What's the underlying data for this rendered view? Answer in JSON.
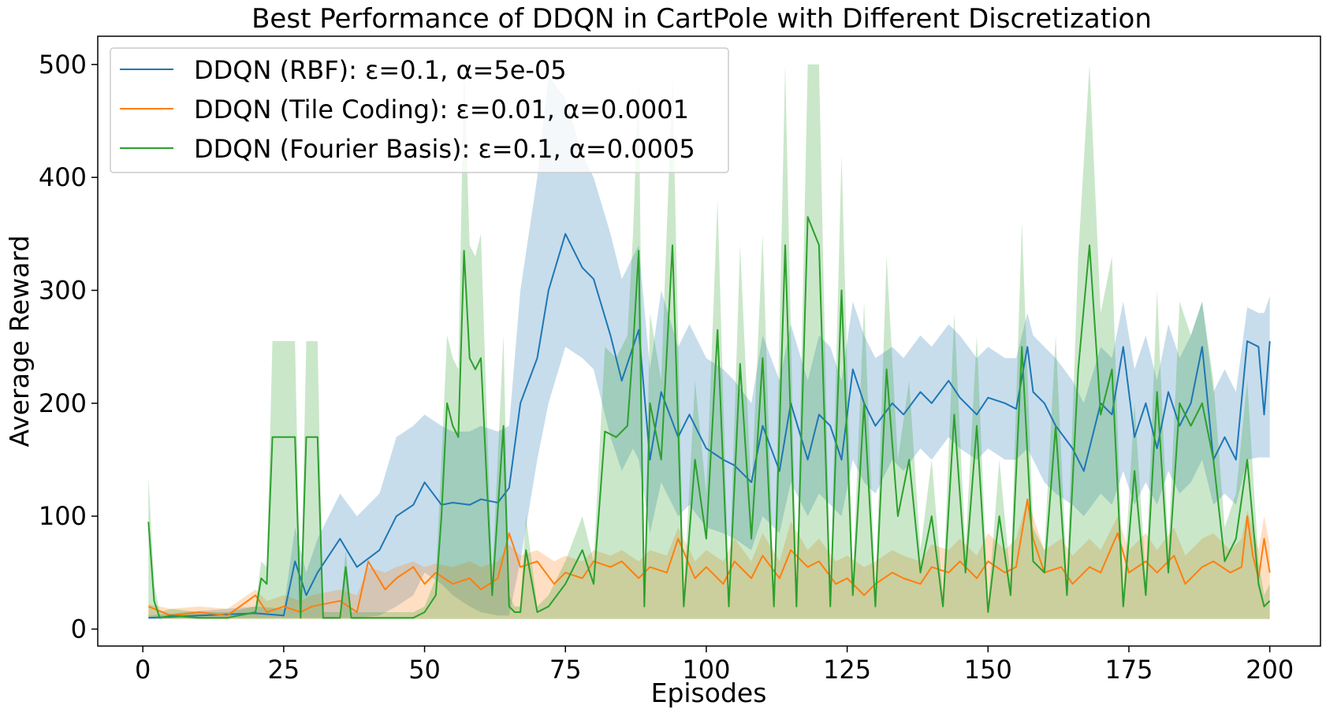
{
  "chart_data": {
    "type": "line",
    "title": "Best Performance of DDQN in CartPole with Different Discretization",
    "xlabel": "Episodes",
    "ylabel": "Average Reward",
    "xlim": [
      -8,
      209
    ],
    "ylim": [
      -15,
      525
    ],
    "xticks": [
      0,
      25,
      50,
      75,
      100,
      125,
      150,
      175,
      200
    ],
    "yticks": [
      0,
      100,
      200,
      300,
      400,
      500
    ],
    "grid": false,
    "legend_position": "top-left",
    "series": [
      {
        "name": "DDQN (RBF): ε=0.1, α=5e-05",
        "color": "#1f77b4",
        "band_color": "#1f77b4",
        "x": [
          1,
          10,
          20,
          25,
          27,
          29,
          31,
          35,
          38,
          42,
          45,
          48,
          50,
          53,
          55,
          58,
          60,
          63,
          65,
          67,
          70,
          72,
          75,
          78,
          80,
          83,
          85,
          87,
          88,
          90,
          92,
          95,
          97,
          100,
          103,
          105,
          108,
          110,
          113,
          115,
          118,
          120,
          122,
          124,
          126,
          128,
          130,
          133,
          135,
          138,
          140,
          143,
          145,
          148,
          150,
          153,
          155,
          157,
          158,
          160,
          162,
          165,
          167,
          170,
          172,
          174,
          176,
          178,
          180,
          182,
          184,
          186,
          188,
          190,
          192,
          194,
          196,
          198,
          199,
          200
        ],
        "mean": [
          10,
          12,
          14,
          12,
          60,
          30,
          50,
          80,
          55,
          70,
          100,
          110,
          130,
          110,
          112,
          110,
          115,
          112,
          125,
          200,
          240,
          300,
          350,
          320,
          310,
          260,
          220,
          250,
          265,
          150,
          210,
          170,
          190,
          160,
          150,
          145,
          130,
          180,
          140,
          200,
          150,
          190,
          180,
          150,
          230,
          200,
          180,
          200,
          190,
          210,
          200,
          220,
          205,
          190,
          205,
          200,
          195,
          250,
          210,
          200,
          180,
          160,
          140,
          200,
          190,
          250,
          170,
          200,
          160,
          210,
          180,
          200,
          250,
          150,
          170,
          150,
          255,
          250,
          190,
          255
        ],
        "lower": [
          9,
          10,
          10,
          10,
          10,
          10,
          10,
          10,
          10,
          12,
          20,
          30,
          50,
          40,
          30,
          20,
          15,
          12,
          12,
          60,
          150,
          200,
          250,
          240,
          230,
          170,
          140,
          160,
          150,
          85,
          130,
          100,
          110,
          90,
          85,
          80,
          70,
          100,
          85,
          130,
          100,
          120,
          110,
          100,
          150,
          130,
          120,
          150,
          140,
          160,
          150,
          170,
          160,
          150,
          160,
          150,
          150,
          160,
          150,
          130,
          120,
          110,
          100,
          120,
          110,
          140,
          110,
          130,
          110,
          140,
          120,
          130,
          150,
          110,
          120,
          110,
          150,
          152,
          152,
          152
        ],
        "upper": [
          12,
          16,
          20,
          18,
          90,
          50,
          80,
          120,
          100,
          120,
          170,
          180,
          190,
          180,
          175,
          175,
          180,
          175,
          180,
          300,
          400,
          490,
          470,
          420,
          400,
          350,
          310,
          330,
          340,
          230,
          300,
          250,
          270,
          240,
          230,
          220,
          200,
          260,
          220,
          270,
          220,
          260,
          250,
          220,
          290,
          260,
          240,
          250,
          240,
          260,
          250,
          270,
          260,
          240,
          250,
          240,
          240,
          280,
          260,
          250,
          240,
          220,
          200,
          250,
          240,
          290,
          230,
          260,
          220,
          270,
          240,
          260,
          290,
          210,
          230,
          210,
          285,
          280,
          280,
          295
        ]
      },
      {
        "name": "DDQN (Tile Coding): ε=0.01, α=0.0001",
        "color": "#ff7f0e",
        "band_color": "#ff7f0e",
        "x": [
          1,
          5,
          10,
          15,
          20,
          22,
          25,
          28,
          30,
          35,
          38,
          40,
          43,
          45,
          48,
          50,
          52,
          55,
          58,
          60,
          63,
          65,
          67,
          70,
          73,
          75,
          78,
          80,
          83,
          85,
          88,
          90,
          93,
          95,
          98,
          100,
          103,
          105,
          108,
          110,
          113,
          115,
          118,
          120,
          123,
          125,
          128,
          130,
          133,
          135,
          138,
          140,
          143,
          145,
          148,
          150,
          153,
          155,
          157,
          158,
          160,
          163,
          165,
          168,
          170,
          173,
          175,
          178,
          180,
          183,
          185,
          188,
          190,
          193,
          195,
          196,
          197,
          198,
          199,
          200
        ],
        "mean": [
          20,
          12,
          15,
          12,
          30,
          15,
          20,
          15,
          20,
          25,
          15,
          60,
          35,
          45,
          55,
          40,
          50,
          40,
          45,
          35,
          45,
          85,
          55,
          60,
          40,
          50,
          45,
          60,
          55,
          60,
          45,
          55,
          50,
          80,
          45,
          55,
          40,
          60,
          45,
          65,
          45,
          70,
          55,
          60,
          40,
          45,
          30,
          40,
          50,
          45,
          40,
          55,
          50,
          60,
          45,
          60,
          50,
          55,
          115,
          80,
          50,
          55,
          40,
          55,
          50,
          85,
          50,
          60,
          50,
          65,
          40,
          55,
          60,
          50,
          55,
          100,
          65,
          45,
          80,
          50
        ],
        "lower": [
          10,
          9,
          9,
          9,
          9,
          9,
          9,
          9,
          9,
          9,
          9,
          9,
          9,
          9,
          9,
          9,
          9,
          9,
          9,
          9,
          9,
          9,
          9,
          9,
          9,
          9,
          9,
          9,
          9,
          9,
          9,
          9,
          9,
          9,
          9,
          9,
          9,
          9,
          9,
          9,
          9,
          9,
          9,
          9,
          9,
          9,
          9,
          9,
          9,
          9,
          9,
          9,
          9,
          9,
          9,
          9,
          9,
          9,
          9,
          9,
          9,
          9,
          9,
          9,
          9,
          9,
          9,
          9,
          9,
          9,
          9,
          9,
          9,
          9,
          9,
          9,
          9,
          9,
          9,
          9
        ],
        "upper": [
          22,
          18,
          20,
          18,
          35,
          25,
          30,
          25,
          30,
          35,
          30,
          55,
          50,
          55,
          60,
          55,
          58,
          55,
          60,
          55,
          60,
          75,
          65,
          70,
          60,
          65,
          60,
          70,
          65,
          70,
          60,
          70,
          65,
          90,
          60,
          70,
          60,
          80,
          60,
          85,
          60,
          95,
          70,
          80,
          60,
          65,
          55,
          60,
          70,
          65,
          60,
          75,
          70,
          80,
          65,
          85,
          70,
          80,
          115,
          100,
          70,
          80,
          65,
          80,
          70,
          100,
          70,
          85,
          70,
          90,
          65,
          80,
          85,
          70,
          80,
          105,
          90,
          70,
          100,
          75
        ]
      },
      {
        "name": "DDQN (Fourier Basis): ε=0.1, α=0.0005",
        "color": "#2ca02c",
        "band_color": "#2ca02c",
        "x": [
          1,
          2,
          3,
          5,
          10,
          15,
          20,
          21,
          22,
          23,
          24,
          27,
          28,
          29,
          31,
          32,
          33,
          35,
          36,
          37,
          38,
          40,
          45,
          48,
          50,
          52,
          53,
          54,
          55,
          56,
          57,
          58,
          59,
          60,
          62,
          64,
          65,
          66,
          67,
          68,
          70,
          72,
          75,
          78,
          80,
          82,
          84,
          86,
          87,
          88,
          89,
          90,
          92,
          94,
          96,
          98,
          100,
          102,
          104,
          106,
          108,
          110,
          112,
          114,
          116,
          118,
          120,
          122,
          124,
          126,
          128,
          130,
          132,
          134,
          136,
          138,
          140,
          142,
          144,
          146,
          148,
          150,
          152,
          154,
          156,
          158,
          160,
          162,
          164,
          166,
          168,
          170,
          172,
          174,
          176,
          178,
          180,
          182,
          184,
          186,
          188,
          190,
          192,
          194,
          196,
          198,
          199,
          200
        ],
        "mean": [
          95,
          25,
          10,
          12,
          10,
          10,
          15,
          45,
          40,
          170,
          170,
          170,
          10,
          170,
          170,
          10,
          10,
          10,
          55,
          10,
          10,
          10,
          10,
          10,
          15,
          30,
          100,
          200,
          180,
          170,
          335,
          240,
          230,
          240,
          30,
          180,
          20,
          15,
          15,
          70,
          15,
          20,
          40,
          70,
          40,
          175,
          170,
          180,
          250,
          335,
          20,
          200,
          150,
          340,
          20,
          150,
          80,
          265,
          20,
          235,
          80,
          240,
          20,
          340,
          20,
          365,
          340,
          20,
          300,
          30,
          200,
          20,
          230,
          100,
          150,
          50,
          100,
          20,
          190,
          50,
          180,
          15,
          100,
          30,
          250,
          60,
          50,
          180,
          30,
          230,
          340,
          190,
          230,
          20,
          140,
          30,
          210,
          50,
          200,
          180,
          200,
          150,
          60,
          80,
          150,
          40,
          20,
          25
        ],
        "lower": [
          10,
          9,
          9,
          9,
          9,
          9,
          9,
          9,
          9,
          9,
          9,
          9,
          9,
          9,
          9,
          9,
          9,
          9,
          9,
          9,
          9,
          9,
          9,
          9,
          9,
          9,
          9,
          9,
          9,
          9,
          9,
          9,
          9,
          9,
          9,
          9,
          9,
          9,
          9,
          9,
          9,
          9,
          9,
          9,
          9,
          9,
          9,
          9,
          9,
          9,
          9,
          9,
          9,
          9,
          9,
          9,
          9,
          9,
          9,
          9,
          9,
          9,
          9,
          9,
          9,
          9,
          9,
          9,
          9,
          9,
          9,
          9,
          9,
          9,
          9,
          9,
          9,
          9,
          9,
          9,
          9,
          9,
          9,
          9,
          9,
          9,
          9,
          9,
          9,
          9,
          9,
          9,
          9,
          9,
          9,
          9,
          9,
          9,
          9,
          9,
          9,
          9,
          9,
          9,
          9,
          9,
          9,
          9
        ],
        "upper": [
          135,
          40,
          15,
          18,
          15,
          15,
          20,
          60,
          55,
          255,
          255,
          255,
          15,
          255,
          255,
          15,
          15,
          15,
          70,
          15,
          15,
          15,
          15,
          15,
          20,
          45,
          150,
          260,
          240,
          230,
          500,
          340,
          330,
          350,
          45,
          260,
          30,
          20,
          20,
          100,
          20,
          30,
          60,
          100,
          60,
          250,
          240,
          260,
          350,
          490,
          30,
          280,
          220,
          490,
          30,
          220,
          120,
          380,
          30,
          340,
          120,
          350,
          30,
          500,
          30,
          500,
          500,
          30,
          420,
          45,
          290,
          30,
          330,
          150,
          220,
          70,
          150,
          30,
          280,
          70,
          260,
          20,
          150,
          45,
          360,
          90,
          70,
          260,
          45,
          330,
          500,
          280,
          330,
          30,
          200,
          45,
          300,
          70,
          290,
          260,
          290,
          220,
          90,
          120,
          220,
          60,
          30,
          40
        ]
      }
    ]
  }
}
